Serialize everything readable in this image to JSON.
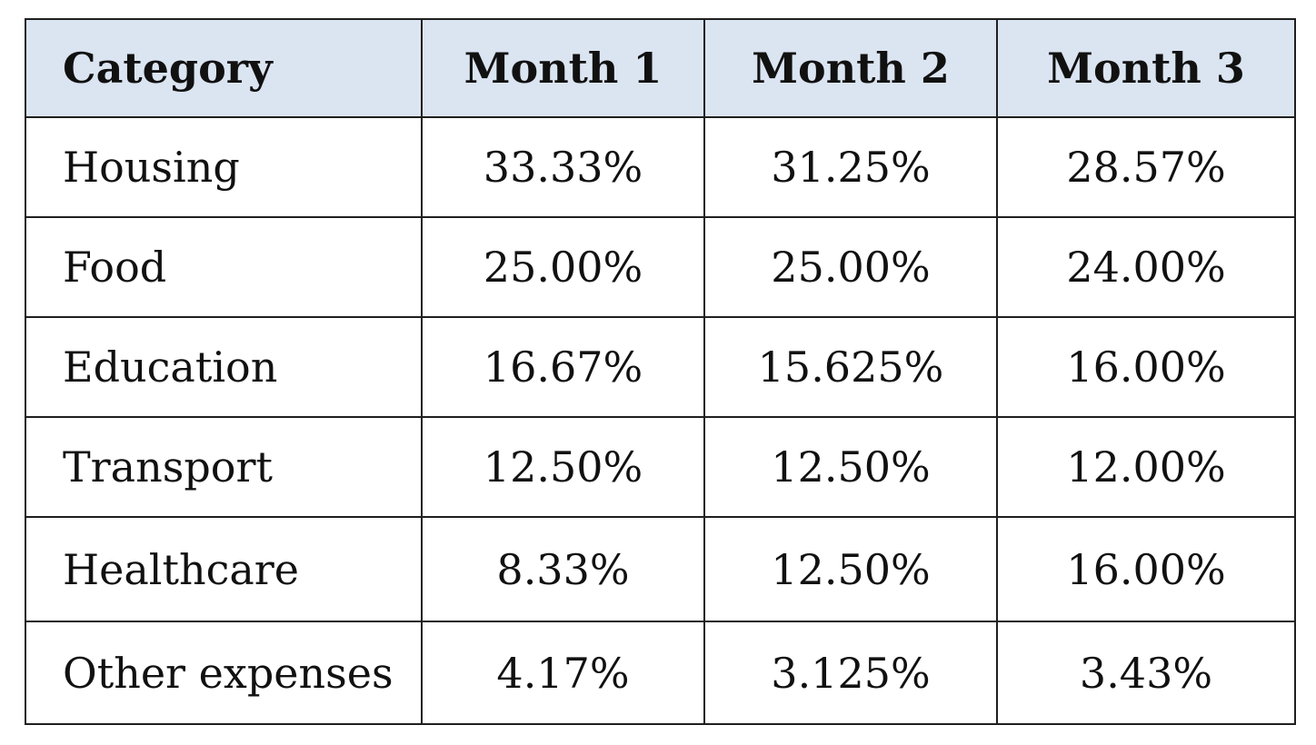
{
  "table": {
    "headers": [
      "Category",
      "Month 1",
      "Month 2",
      "Month 3"
    ],
    "rows": [
      {
        "category": "Housing",
        "values": [
          "33.33%",
          "31.25%",
          "28.57%"
        ]
      },
      {
        "category": "Food",
        "values": [
          "25.00%",
          "25.00%",
          "24.00%"
        ]
      },
      {
        "category": "Education",
        "values": [
          "16.67%",
          "15.625%",
          "16.00%"
        ]
      },
      {
        "category": "Transport",
        "values": [
          "12.50%",
          "12.50%",
          "12.00%"
        ]
      },
      {
        "category": "Healthcare",
        "values": [
          "8.33%",
          "12.50%",
          "16.00%"
        ]
      },
      {
        "category": "Other expenses",
        "values": [
          "4.17%",
          "3.125%",
          "3.43%"
        ]
      }
    ],
    "colors": {
      "header_background": "#dbe4f1",
      "border": "#1f1f1f",
      "text": "#111111"
    }
  }
}
